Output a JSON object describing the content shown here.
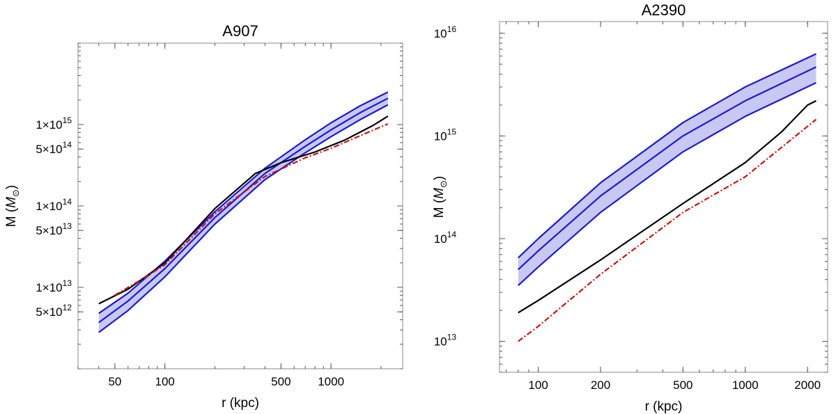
{
  "chart_data": [
    {
      "type": "line",
      "title": "A907",
      "xlabel": "r (kpc)",
      "ylabel": "M (M_⊙)",
      "xscale": "log",
      "yscale": "log",
      "xlim": [
        30,
        2700
      ],
      "ylim": [
        1000000000000.0,
        1e+16
      ],
      "xticks": [
        {
          "value": 50,
          "label": "50"
        },
        {
          "value": 100,
          "label": "100"
        },
        {
          "value": 500,
          "label": "500"
        },
        {
          "value": 1000,
          "label": "1000"
        }
      ],
      "yticks": [
        {
          "value": 5000000000000.0,
          "mant": "5",
          "exp": "12"
        },
        {
          "value": 10000000000000.0,
          "mant": "1",
          "exp": "13"
        },
        {
          "value": 50000000000000.0,
          "mant": "5",
          "exp": "13"
        },
        {
          "value": 100000000000000.0,
          "mant": "1",
          "exp": "14"
        },
        {
          "value": 500000000000000.0,
          "mant": "5",
          "exp": "14"
        },
        {
          "value": 1000000000000000.0,
          "mant": "1",
          "exp": "15"
        }
      ],
      "grid": false,
      "series": [
        {
          "role": "band-upper",
          "color": "#1a1ad0",
          "x": [
            40,
            60,
            100,
            200,
            400,
            700,
            1000,
            1500,
            2200
          ],
          "y": [
            4800000000000.0,
            8500000000000.0,
            21000000000000.0,
            85000000000000.0,
            290000000000000.0,
            650000000000000.0,
            1050000000000000.0,
            1700000000000000.0,
            2500000000000000.0
          ]
        },
        {
          "role": "band-central",
          "color": "#1a1ad0",
          "x": [
            40,
            60,
            100,
            200,
            400,
            700,
            1000,
            1500,
            2200
          ],
          "y": [
            3700000000000.0,
            6800000000000.0,
            17000000000000.0,
            72000000000000.0,
            250000000000000.0,
            540000000000000.0,
            860000000000000.0,
            1400000000000000.0,
            2100000000000000.0
          ]
        },
        {
          "role": "band-lower",
          "color": "#1a1ad0",
          "x": [
            40,
            60,
            100,
            200,
            400,
            700,
            1000,
            1500,
            2200
          ],
          "y": [
            2800000000000.0,
            5200000000000.0,
            13500000000000.0,
            60000000000000.0,
            210000000000000.0,
            450000000000000.0,
            710000000000000.0,
            1150000000000000.0,
            1750000000000000.0
          ]
        },
        {
          "role": "solid",
          "color": "#000000",
          "x": [
            40,
            60,
            100,
            200,
            350,
            500,
            800,
            1200,
            1800,
            2200
          ],
          "y": [
            6300000000000.0,
            9500000000000.0,
            20000000000000.0,
            93000000000000.0,
            250000000000000.0,
            340000000000000.0,
            460000000000000.0,
            640000000000000.0,
            980000000000000.0,
            1270000000000000.0
          ]
        },
        {
          "role": "dash-dot",
          "color": "#cc1111",
          "x": [
            50,
            70,
            100,
            200,
            400,
            700,
            1000,
            1500,
            2200
          ],
          "y": [
            8000000000000.0,
            12000000000000.0,
            19000000000000.0,
            80000000000000.0,
            230000000000000.0,
            390000000000000.0,
            510000000000000.0,
            730000000000000.0,
            1020000000000000.0
          ]
        }
      ]
    },
    {
      "type": "line",
      "title": "A2390",
      "xlabel": "r (kpc)",
      "ylabel": "M (M_⊙)",
      "xscale": "log",
      "yscale": "log",
      "xlim": [
        65,
        2500
      ],
      "ylim": [
        5000000000000.0,
        1.3e+16
      ],
      "xticks": [
        {
          "value": 100,
          "label": "100"
        },
        {
          "value": 200,
          "label": "200"
        },
        {
          "value": 500,
          "label": "500"
        },
        {
          "value": 1000,
          "label": "1000"
        },
        {
          "value": 2000,
          "label": "2000"
        }
      ],
      "yticks": [
        {
          "value": 10000000000000.0,
          "mant": "",
          "exp": "13"
        },
        {
          "value": 100000000000000.0,
          "mant": "",
          "exp": "14"
        },
        {
          "value": 1000000000000000.0,
          "mant": "",
          "exp": "15"
        },
        {
          "value": 1e+16,
          "mant": "",
          "exp": "16"
        }
      ],
      "grid": false,
      "series": [
        {
          "role": "band-upper",
          "color": "#1a1ad0",
          "x": [
            80,
            100,
            200,
            500,
            1000,
            2200
          ],
          "y": [
            65000000000000.0,
            100000000000000.0,
            350000000000000.0,
            1350000000000000.0,
            3000000000000000.0,
            6300000000000000.0
          ]
        },
        {
          "role": "band-central",
          "color": "#1a1ad0",
          "x": [
            80,
            100,
            200,
            500,
            1000,
            2200
          ],
          "y": [
            50000000000000.0,
            76000000000000.0,
            260000000000000.0,
            1000000000000000.0,
            2200000000000000.0,
            4700000000000000.0
          ]
        },
        {
          "role": "band-lower",
          "color": "#1a1ad0",
          "x": [
            80,
            100,
            200,
            500,
            1000,
            2200
          ],
          "y": [
            35000000000000.0,
            53000000000000.0,
            180000000000000.0,
            700000000000000.0,
            1550000000000000.0,
            3300000000000000.0
          ]
        },
        {
          "role": "solid",
          "color": "#000000",
          "x": [
            80,
            100,
            200,
            500,
            1000,
            1500,
            2000,
            2200
          ],
          "y": [
            19000000000000.0,
            25000000000000.0,
            62000000000000.0,
            220000000000000.0,
            550000000000000.0,
            1100000000000000.0,
            2000000000000000.0,
            2200000000000000.0
          ]
        },
        {
          "role": "dash-dot",
          "color": "#cc1111",
          "x": [
            80,
            100,
            200,
            500,
            1000,
            2200
          ],
          "y": [
            10000000000000.0,
            14000000000000.0,
            45000000000000.0,
            180000000000000.0,
            400000000000000.0,
            1450000000000000.0
          ]
        }
      ]
    }
  ]
}
